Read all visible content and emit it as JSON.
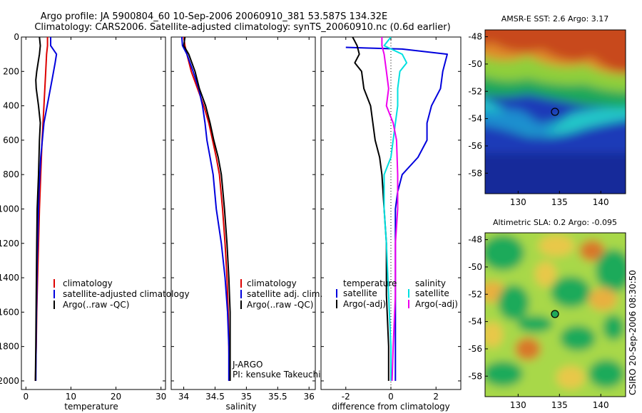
{
  "header": {
    "line1": "Argo profile: JA 5900804_60 10-Sep-2006 20060910_381 53.587S 134.32E",
    "line2": "Climatology: CARS2006. Satellite-adjusted climatology: synTS_20060910.nc (0.6d earlier)"
  },
  "side_label": "CSIRO 20-Sep-2006 08:30:50",
  "colors": {
    "clim": "#dd0000",
    "sat": "#0000dd",
    "argo": "#000000",
    "cyan": "#00e0e0",
    "magenta": "#ee00ee"
  },
  "chart_data": [
    {
      "type": "line",
      "xlabel": "temperature",
      "ylabel": "",
      "xlim": [
        -1,
        31
      ],
      "ylim": [
        2050,
        0
      ],
      "xticks": [
        0,
        10,
        20,
        30
      ],
      "yticks": [
        0,
        200,
        400,
        600,
        800,
        1000,
        1200,
        1400,
        1600,
        1800,
        2000
      ],
      "legend": {
        "placement": "bottom-right",
        "entries": [
          "climatology",
          "satellite-adjusted climatology",
          "Argo(..raw -QC)"
        ]
      },
      "series": [
        {
          "name": "climatology",
          "color": "#dd0000",
          "x": [
            4.8,
            4.8,
            4.6,
            4.4,
            4.0,
            3.6,
            3.3,
            3.0,
            2.8,
            2.6,
            2.4,
            2.3,
            2.2,
            2.1
          ],
          "y": [
            0,
            50,
            100,
            200,
            400,
            600,
            800,
            1000,
            1200,
            1400,
            1600,
            1800,
            1900,
            2000
          ]
        },
        {
          "name": "satellite-adjusted climatology",
          "color": "#0000dd",
          "x": [
            5.5,
            5.5,
            6.8,
            6.5,
            5.8,
            4.0,
            3.3,
            2.9,
            2.7,
            2.5,
            2.4,
            2.3,
            2.2
          ],
          "y": [
            0,
            50,
            100,
            150,
            250,
            500,
            700,
            900,
            1100,
            1300,
            1500,
            1700,
            2000
          ]
        },
        {
          "name": "Argo(..raw -QC)",
          "color": "#000000",
          "x": [
            3.0,
            3.2,
            3.0,
            2.7,
            2.4,
            2.2,
            2.3,
            2.8,
            3.2,
            3.0,
            2.8,
            2.5,
            2.4,
            2.3,
            2.2,
            2.1
          ],
          "y": [
            0,
            50,
            100,
            150,
            200,
            250,
            300,
            400,
            500,
            600,
            800,
            1000,
            1200,
            1500,
            1800,
            2000
          ]
        }
      ]
    },
    {
      "type": "line",
      "xlabel": "salinity",
      "ylabel": "",
      "xlim": [
        33.8,
        36.1
      ],
      "ylim": [
        2050,
        0
      ],
      "xticks": [
        34,
        34.5,
        35,
        35.5,
        36
      ],
      "yticks": [
        0,
        200,
        400,
        600,
        800,
        1000,
        1200,
        1400,
        1600,
        1800,
        2000
      ],
      "legend": {
        "placement": "bottom-right",
        "entries": [
          "climatology",
          "satellite adj. clim.",
          "Argo(..raw -QC)"
        ]
      },
      "annotations": [
        "J-ARGO",
        "PI: kensuke Takeuchi"
      ],
      "series": [
        {
          "name": "climatology",
          "color": "#dd0000",
          "x": [
            34.0,
            34.02,
            34.05,
            34.12,
            34.22,
            34.32,
            34.4,
            34.46,
            34.52,
            34.57,
            34.62,
            34.66,
            34.69,
            34.71,
            34.72,
            34.73
          ],
          "y": [
            0,
            50,
            100,
            200,
            300,
            400,
            500,
            600,
            700,
            800,
            1000,
            1200,
            1400,
            1600,
            1800,
            2000
          ]
        },
        {
          "name": "satellite adj. clim.",
          "color": "#0000dd",
          "x": [
            33.97,
            33.98,
            34.05,
            34.15,
            34.24,
            34.3,
            34.34,
            34.37,
            34.42,
            34.47,
            34.52,
            34.6,
            34.66,
            34.7,
            34.72,
            34.72
          ],
          "y": [
            0,
            50,
            100,
            200,
            300,
            400,
            500,
            600,
            700,
            800,
            1000,
            1200,
            1400,
            1600,
            1800,
            2000
          ]
        },
        {
          "name": "Argo(..raw -QC)",
          "color": "#000000",
          "x": [
            34.02,
            34.0,
            34.08,
            34.18,
            34.25,
            34.35,
            34.42,
            34.48,
            34.55,
            34.6,
            34.65,
            34.69,
            34.72,
            34.74,
            34.74,
            34.74
          ],
          "y": [
            0,
            50,
            100,
            200,
            300,
            400,
            500,
            600,
            700,
            800,
            1000,
            1200,
            1400,
            1600,
            1800,
            2000
          ]
        }
      ]
    },
    {
      "type": "line",
      "xlabel": "difference from climatology",
      "ylabel": "",
      "xlim": [
        -3.1,
        3.1
      ],
      "ylim": [
        2050,
        0
      ],
      "xticks": [
        -2,
        0,
        2
      ],
      "yticks": [
        0,
        200,
        400,
        600,
        800,
        1000,
        1200,
        1400,
        1600,
        1800,
        2000
      ],
      "legend": {
        "placement": "bottom",
        "entries": [
          "temperature",
          "satellite",
          "Argo(-adj)",
          "salinity",
          "satellite",
          "Argo(-adj)"
        ]
      },
      "series": [
        {
          "name": "temperature satellite",
          "color": "#0000dd",
          "x": [
            -2.0,
            0.5,
            2.5,
            2.3,
            2.2,
            1.8,
            1.6,
            1.6,
            1.2,
            0.5,
            0.3,
            0.2,
            0.2,
            0.2,
            0.2,
            0.2,
            0.2
          ],
          "y": [
            60,
            70,
            100,
            200,
            300,
            400,
            500,
            600,
            700,
            800,
            900,
            1000,
            1200,
            1400,
            1600,
            1800,
            2000
          ]
        },
        {
          "name": "temperature Argo(-adj)",
          "color": "#000000",
          "x": [
            -1.7,
            -1.5,
            -1.4,
            -1.6,
            -1.3,
            -1.2,
            -0.9,
            -0.8,
            -0.7,
            -0.5,
            -0.4,
            -0.3,
            -0.2,
            -0.2,
            -0.1,
            -0.1
          ],
          "y": [
            0,
            50,
            100,
            150,
            200,
            300,
            400,
            500,
            600,
            700,
            800,
            1000,
            1200,
            1500,
            1800,
            2000
          ]
        },
        {
          "name": "salinity satellite",
          "color": "#00e0e0",
          "x": [
            0.0,
            -0.3,
            0.5,
            0.7,
            0.4,
            0.3,
            0.3,
            0.2,
            0.0,
            -0.3,
            -0.3,
            -0.2,
            -0.1,
            0.0,
            0.0
          ],
          "y": [
            0,
            50,
            100,
            150,
            200,
            300,
            400,
            500,
            700,
            800,
            1000,
            1200,
            1500,
            1800,
            2000
          ]
        },
        {
          "name": "salinity Argo(-adj)",
          "color": "#ee00ee",
          "x": [
            -0.4,
            -0.4,
            -0.3,
            -0.2,
            -0.1,
            -0.2,
            0.1,
            0.25,
            0.3,
            0.3,
            0.3,
            0.2,
            0.2,
            0.1,
            0.05
          ],
          "y": [
            0,
            50,
            100,
            200,
            300,
            400,
            500,
            600,
            800,
            900,
            1000,
            1200,
            1500,
            1800,
            2000
          ]
        }
      ]
    },
    {
      "type": "heatmap",
      "title": "AMSR-E SST: 2.6 Argo: 3.17",
      "xlim": [
        126,
        143
      ],
      "ylim": [
        -59.5,
        -47.5
      ],
      "xticks": [
        130,
        135,
        140
      ],
      "yticks": [
        -48,
        -50,
        -52,
        -54,
        -56,
        -58
      ],
      "marker": {
        "lon": 134.32,
        "lat": -53.587
      }
    },
    {
      "type": "heatmap",
      "title": "Altimetric SLA: 0.2 Argo: -0.095",
      "xlim": [
        126,
        143
      ],
      "ylim": [
        -59.5,
        -47.5
      ],
      "xticks": [
        130,
        135,
        140
      ],
      "yticks": [
        -48,
        -50,
        -52,
        -54,
        -56,
        -58
      ],
      "marker": {
        "lon": 134.32,
        "lat": -53.587
      }
    }
  ]
}
